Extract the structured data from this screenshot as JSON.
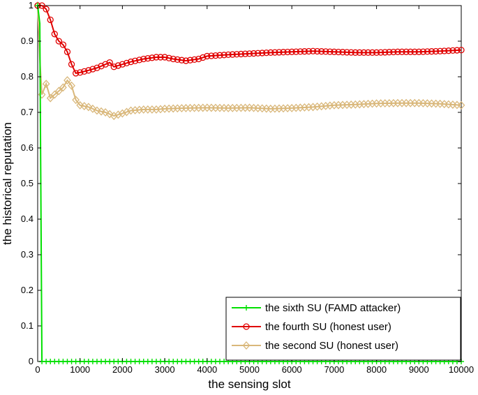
{
  "chart_data": {
    "type": "line",
    "title": "",
    "xlabel": "the sensing slot",
    "ylabel": "the historical reputation",
    "xlim": [
      0,
      10000
    ],
    "ylim": [
      0,
      1
    ],
    "xticks": [
      0,
      1000,
      2000,
      3000,
      4000,
      5000,
      6000,
      7000,
      8000,
      9000,
      10000
    ],
    "xtick_labels": [
      "0",
      "1000",
      "2000",
      "3000",
      "4000",
      "5000",
      "6000",
      "7000",
      "8000",
      "9000",
      "10000"
    ],
    "yticks": [
      0,
      0.1,
      0.2,
      0.3,
      0.4,
      0.5,
      0.6,
      0.7,
      0.8,
      0.9,
      1
    ],
    "ytick_labels": [
      "0",
      "0.1",
      "0.2",
      "0.3",
      "0.4",
      "0.5",
      "0.6",
      "0.7",
      "0.8",
      "0.9",
      "1"
    ],
    "grid": false,
    "legend_position": "bottom-right",
    "series": [
      {
        "name": "the sixth SU (FAMD attacker)",
        "color": "#00e000",
        "marker": "plus",
        "x": [
          0,
          50,
          100,
          10000
        ],
        "y": [
          1,
          0.95,
          0,
          0
        ],
        "marker_every": 100
      },
      {
        "name": "the fourth SU (honest user)",
        "color": "#e00000",
        "marker": "circle",
        "x": [
          0,
          100,
          200,
          300,
          400,
          500,
          600,
          700,
          800,
          900,
          1000,
          1200,
          1400,
          1600,
          1700,
          1800,
          2000,
          2200,
          2500,
          2800,
          3000,
          3200,
          3500,
          3800,
          4000,
          4500,
          5000,
          5500,
          6000,
          6500,
          7000,
          7500,
          8000,
          8500,
          9000,
          9500,
          10000
        ],
        "y": [
          1,
          1,
          0.99,
          0.96,
          0.92,
          0.9,
          0.89,
          0.87,
          0.835,
          0.81,
          0.812,
          0.818,
          0.825,
          0.835,
          0.84,
          0.828,
          0.835,
          0.842,
          0.85,
          0.855,
          0.855,
          0.85,
          0.845,
          0.85,
          0.858,
          0.862,
          0.865,
          0.868,
          0.87,
          0.872,
          0.87,
          0.868,
          0.868,
          0.87,
          0.87,
          0.872,
          0.875
        ],
        "marker_every": 100
      },
      {
        "name": "the second SU (honest user)",
        "color": "#d9b77a",
        "marker": "diamond",
        "x": [
          0,
          50,
          100,
          200,
          300,
          400,
          500,
          600,
          700,
          800,
          900,
          1000,
          1200,
          1400,
          1600,
          1800,
          2000,
          2200,
          2500,
          2800,
          3000,
          3500,
          4000,
          4500,
          5000,
          5500,
          6000,
          6500,
          7000,
          7500,
          8000,
          8500,
          9000,
          9500,
          10000
        ],
        "y": [
          1,
          0.85,
          0.75,
          0.78,
          0.74,
          0.75,
          0.76,
          0.77,
          0.79,
          0.775,
          0.735,
          0.72,
          0.715,
          0.705,
          0.7,
          0.69,
          0.697,
          0.705,
          0.708,
          0.708,
          0.71,
          0.712,
          0.713,
          0.712,
          0.713,
          0.71,
          0.712,
          0.715,
          0.72,
          0.722,
          0.725,
          0.726,
          0.726,
          0.724,
          0.72
        ],
        "marker_every": 100
      }
    ]
  }
}
